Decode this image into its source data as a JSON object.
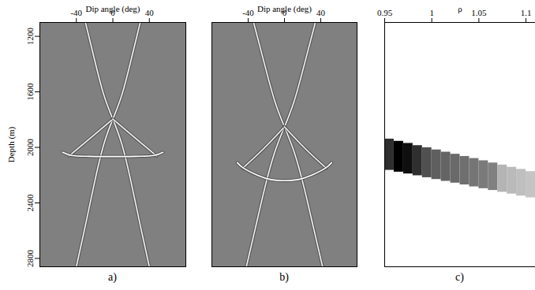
{
  "chart_data": [
    {
      "type": "line",
      "caption": "a)",
      "x_label": "Dip angle (deg)",
      "y_label": "Depth (m)",
      "xlim": [
        -80,
        80
      ],
      "xticks": [
        -40,
        0,
        40
      ],
      "ylim": [
        1100,
        2860
      ],
      "yticks": [
        1200,
        1600,
        2000,
        2400,
        2800
      ],
      "series": [
        {
          "color": "#f2f2f2",
          "x": [
            -30,
            -20,
            -10,
            0,
            10,
            20,
            30,
            40
          ],
          "values": [
            1100,
            1370,
            1620,
            1796,
            1980,
            2250,
            2560,
            2860
          ]
        },
        {
          "color": "#f2f2f2",
          "x": [
            30,
            20,
            10,
            0,
            -10,
            -20,
            -30,
            -40
          ],
          "values": [
            1100,
            1370,
            1620,
            1796,
            1980,
            2250,
            2560,
            2860
          ]
        },
        {
          "color": "#f2f2f2",
          "x": [
            0,
            -24,
            -48
          ],
          "values": [
            1796,
            1930,
            2062
          ]
        },
        {
          "color": "#f2f2f2",
          "x": [
            0,
            24,
            48
          ],
          "values": [
            1796,
            1930,
            2062
          ]
        },
        {
          "color": "#ffffff",
          "x": [
            -55,
            -45,
            -30,
            -15,
            0,
            15,
            30,
            45,
            55
          ],
          "values": [
            2035,
            2058,
            2064,
            2066,
            2066,
            2066,
            2064,
            2058,
            2035
          ]
        }
      ]
    },
    {
      "type": "line",
      "caption": "b)",
      "x_label": "Dip angle (deg)",
      "xlim": [
        -80,
        80
      ],
      "xticks": [
        -40,
        0,
        40
      ],
      "ylim": [
        1100,
        2860
      ],
      "tick_labels": "x",
      "series": [
        {
          "color": "#f2f2f2",
          "x": [
            -34,
            -22,
            -11,
            0,
            11,
            22,
            32,
            42
          ],
          "values": [
            1100,
            1400,
            1660,
            1852,
            2040,
            2300,
            2580,
            2860
          ]
        },
        {
          "color": "#f2f2f2",
          "x": [
            34,
            22,
            11,
            0,
            -11,
            -22,
            -32,
            -42
          ],
          "values": [
            1100,
            1400,
            1660,
            1852,
            2040,
            2300,
            2580,
            2860
          ]
        },
        {
          "color": "#f2f2f2",
          "x": [
            0,
            -23,
            -46
          ],
          "values": [
            1852,
            2010,
            2150
          ]
        },
        {
          "color": "#f2f2f2",
          "x": [
            0,
            23,
            46
          ],
          "values": [
            1852,
            2010,
            2150
          ]
        },
        {
          "color": "#ffffff",
          "x": [
            -52,
            -45,
            -30,
            -15,
            0,
            15,
            30,
            45,
            52
          ],
          "values": [
            2110,
            2150,
            2200,
            2232,
            2240,
            2232,
            2200,
            2150,
            2110
          ]
        }
      ]
    },
    {
      "type": "heatmap",
      "caption": "c)",
      "x_label": "ρ",
      "xlim": [
        0.95,
        1.11
      ],
      "xticks": [
        0.95,
        1,
        1.05,
        1.1
      ],
      "ylim": [
        1100,
        2860
      ],
      "tick_labels": "x",
      "rho_edges": [
        0.95,
        0.96,
        0.97,
        0.98,
        0.99,
        1.0,
        1.01,
        1.02,
        1.03,
        1.04,
        1.05,
        1.06,
        1.07,
        1.08,
        1.09,
        1.1,
        1.11
      ],
      "depth_top": [
        1940,
        1956,
        1971,
        1987,
        2002,
        2018,
        2034,
        2049,
        2065,
        2080,
        2096,
        2112,
        2127,
        2143,
        2158,
        2174
      ],
      "depth_bottom": [
        2165,
        2178,
        2191,
        2204,
        2218,
        2231,
        2244,
        2257,
        2270,
        2284,
        2297,
        2310,
        2323,
        2336,
        2350,
        2363
      ],
      "intensity": [
        0.85,
        1,
        0.95,
        0.85,
        0.75,
        0.7,
        0.68,
        0.66,
        0.64,
        0.62,
        0.6,
        0.58,
        0.4,
        0.38,
        0.36,
        0.34
      ],
      "intensity_range": [
        0,
        1
      ]
    }
  ]
}
